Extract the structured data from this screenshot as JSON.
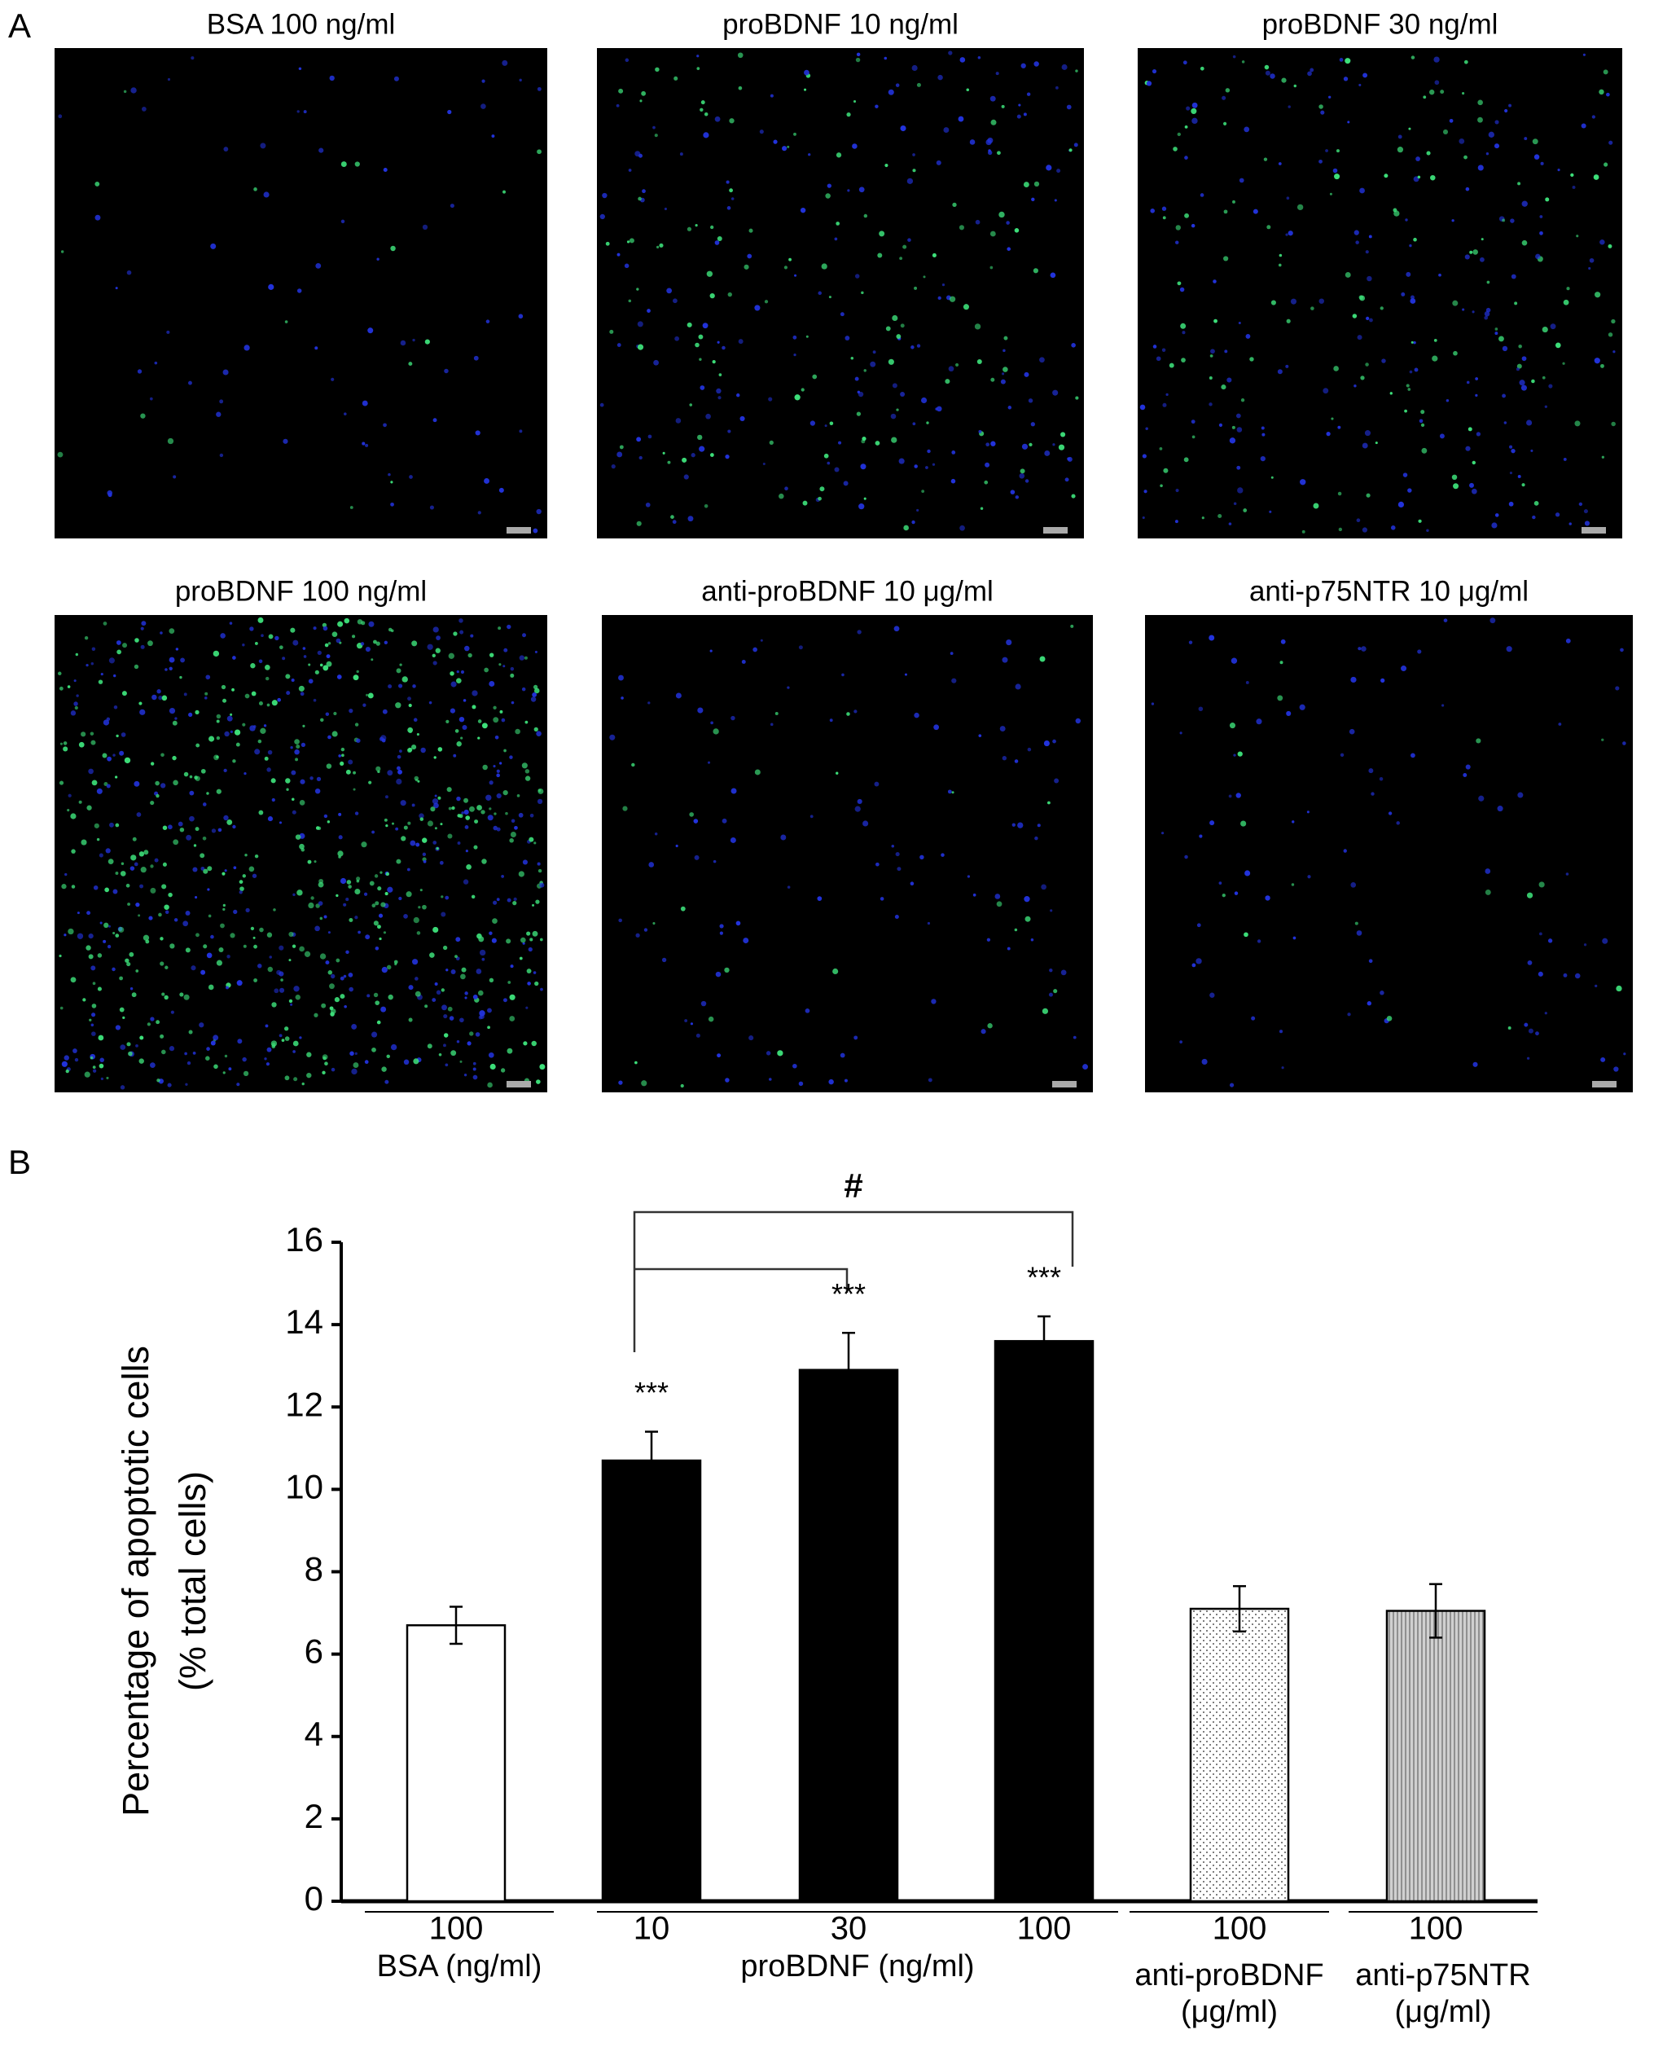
{
  "panels": {
    "a_label": "A",
    "b_label": "B",
    "images": [
      "BSA 100 ng/ml",
      "proBDNF 10 ng/ml",
      "proBDNF 30 ng/ml",
      "proBDNF 100 ng/ml",
      "anti-proBDNF 10 μg/ml",
      "anti-p75NTR 10 μg/ml"
    ]
  },
  "chart_data": {
    "type": "bar",
    "y_label": [
      "Percentage of apoptotic cells",
      "(% total cells)"
    ],
    "categories": [
      "100",
      "10",
      "30",
      "100",
      "100",
      "100"
    ],
    "values": [
      6.7,
      10.7,
      12.9,
      13.6,
      7.1,
      7.05
    ],
    "errors": [
      0.45,
      0.7,
      0.9,
      0.6,
      0.55,
      0.65
    ],
    "colors": [
      "#ffffff",
      "#000000",
      "#000000",
      "#000000",
      "url(#dots)",
      "url(#stripes)"
    ],
    "significance": [
      null,
      "***",
      "***",
      "***",
      null,
      null
    ],
    "bracket_label": "#",
    "groups": [
      [
        "BSA (ng/ml)"
      ],
      [
        "proBDNF (ng/ml)"
      ],
      [
        "anti-proBDNF",
        "(μg/ml)"
      ],
      [
        "anti-p75NTR",
        "(μg/ml)"
      ]
    ],
    "ylim": [
      0,
      16
    ],
    "yticks": [
      0,
      2,
      4,
      6,
      8,
      10,
      12,
      14,
      16
    ]
  }
}
